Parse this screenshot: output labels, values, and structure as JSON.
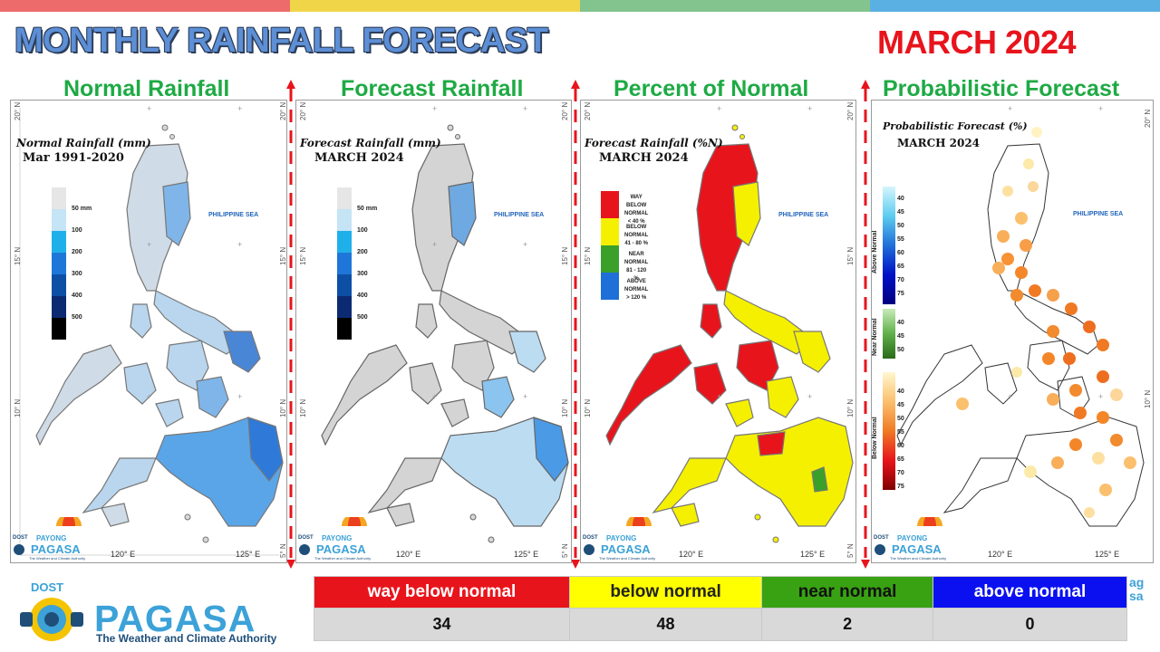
{
  "header": {
    "title": "MONTHLY RAINFALL FORECAST",
    "month": "MARCH 2024",
    "bar_colors": [
      "#ee6b6b",
      "#f1d548",
      "#83c38e",
      "#5bb0e3"
    ]
  },
  "panels": [
    {
      "heading": "Normal Rainfall",
      "map_title": "Normal Rainfall (mm)",
      "map_subtitle": "Mar 1991-2020",
      "legend_labels": [
        "50 mm",
        "100",
        "200",
        "300",
        "400",
        "500"
      ],
      "legend_colors": [
        "#e6e6e6",
        "#c5e4f6",
        "#1fb0ea",
        "#1e77d8",
        "#0e4fa6",
        "#0b2a72",
        "#000000"
      ]
    },
    {
      "heading": "Forecast Rainfall",
      "map_title": "Forecast Rainfall (mm)",
      "map_subtitle": "MARCH 2024",
      "legend_labels": [
        "50 mm",
        "100",
        "200",
        "300",
        "400",
        "500"
      ],
      "legend_colors": [
        "#e6e6e6",
        "#c5e4f6",
        "#1fb0ea",
        "#1e77d8",
        "#0e4fa6",
        "#0b2a72",
        "#000000"
      ]
    },
    {
      "heading": "Percent of Normal",
      "map_title": "Forecast Rainfall (%N)",
      "map_subtitle": "MARCH 2024",
      "categories": [
        {
          "label": "WAY\nBELOW NORMAL\n< 40 %",
          "color": "#e8141c"
        },
        {
          "label": "BELOW NORMAL\n41 - 80 %",
          "color": "#f5f000"
        },
        {
          "label": "NEAR NORMAL\n81 - 120 %",
          "color": "#3aa02a"
        },
        {
          "label": "ABOVE NORMAL\n> 120 %",
          "color": "#1f6fd8"
        }
      ]
    },
    {
      "heading": "Probabilistic Forecast",
      "map_title": "Probabilistic Forecast (%)",
      "map_subtitle": "MARCH 2024",
      "above_label": "Above Normal",
      "near_label": "Near Normal",
      "below_label": "Below Normal",
      "above_ticks": [
        "40",
        "45",
        "50",
        "55",
        "60",
        "65",
        "70",
        "75"
      ],
      "near_ticks": [
        "40",
        "45",
        "50"
      ],
      "below_ticks": [
        "40",
        "45",
        "50",
        "55",
        "60",
        "65",
        "70",
        "75"
      ]
    }
  ],
  "map_common": {
    "sea_label": "PHILIPPINE SEA",
    "lat_labels": [
      "20° N",
      "15° N",
      "10° N",
      "5° N"
    ],
    "lon_labels": [
      "120° E",
      "125° E"
    ],
    "logo_dost": "DOST",
    "logo_payong": "PAYONG",
    "logo_pagasa": "PAGASA",
    "logo_tagline": "The Weather and Climate Authority"
  },
  "summary_table": {
    "categories": [
      {
        "label": "way below normal",
        "value": "34",
        "bg": "#e8141c",
        "fg": "#ffffff"
      },
      {
        "label": "below normal",
        "value": "48",
        "bg": "#ffff00",
        "fg": "#222222"
      },
      {
        "label": "near normal",
        "value": "2",
        "bg": "#38a212",
        "fg": "#111111"
      },
      {
        "label": "above normal",
        "value": "0",
        "bg": "#0a10f0",
        "fg": "#ffffff"
      }
    ]
  },
  "footer": {
    "dost": "DOST",
    "pagasa": "PAGASA",
    "tagline": "The Weather and Climate Authority",
    "right_fragment_1": "ag",
    "right_fragment_2": "sa"
  }
}
